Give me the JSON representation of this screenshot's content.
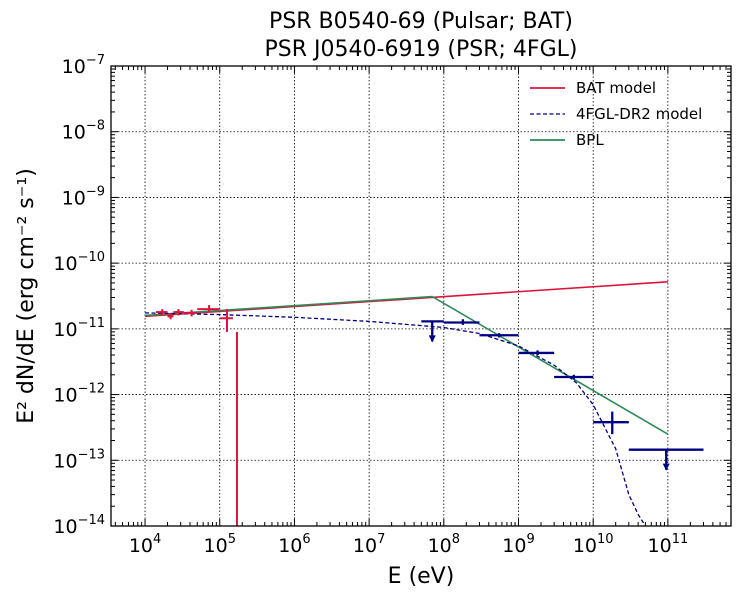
{
  "chart_data": {
    "type": "scatter",
    "title_lines": [
      "PSR B0540-69 (Pulsar; BAT)",
      "PSR J0540-6919 (PSR; 4FGL)"
    ],
    "xlabel": "E (eV)",
    "ylabel": "E² dN/dE (erg cm⁻² s⁻¹)",
    "x_scale": "log",
    "y_scale": "log",
    "xlim": [
      3500,
      700000000000
    ],
    "ylim": [
      1e-14,
      1e-07
    ],
    "x_ticks": [
      {
        "value": 10000,
        "base": "10",
        "exp": "4"
      },
      {
        "value": 100000,
        "base": "10",
        "exp": "5"
      },
      {
        "value": 1000000,
        "base": "10",
        "exp": "6"
      },
      {
        "value": 10000000,
        "base": "10",
        "exp": "7"
      },
      {
        "value": 100000000,
        "base": "10",
        "exp": "8"
      },
      {
        "value": 1000000000,
        "base": "10",
        "exp": "9"
      },
      {
        "value": 10000000000,
        "base": "10",
        "exp": "10"
      },
      {
        "value": 100000000000,
        "base": "10",
        "exp": "11"
      }
    ],
    "y_ticks": [
      {
        "value": 1e-14,
        "base": "10",
        "exp": "−14"
      },
      {
        "value": 1e-13,
        "base": "10",
        "exp": "−13"
      },
      {
        "value": 1e-12,
        "base": "10",
        "exp": "−12"
      },
      {
        "value": 1e-11,
        "base": "10",
        "exp": "−11"
      },
      {
        "value": 1e-10,
        "base": "10",
        "exp": "−10"
      },
      {
        "value": 1e-09,
        "base": "10",
        "exp": "−9"
      },
      {
        "value": 1e-08,
        "base": "10",
        "exp": "−8"
      },
      {
        "value": 1e-07,
        "base": "10",
        "exp": "−7"
      }
    ],
    "grid": true,
    "legend_position": "top-right",
    "legend": [
      {
        "label": "BAT model",
        "color": "#dc143c",
        "style": "solid"
      },
      {
        "label": "4FGL-DR2 model",
        "color": "#000080",
        "style": "dashed"
      },
      {
        "label": "BPL",
        "color": "#2e8b57",
        "style": "solid"
      }
    ],
    "lines": [
      {
        "name": "BAT model",
        "color": "#dc143c",
        "style": "solid",
        "x": [
          10000,
          100000000000
        ],
        "y": [
          1.55e-11,
          5.2e-11
        ]
      },
      {
        "name": "BPL",
        "color": "#2e8b57",
        "style": "solid",
        "x": [
          10000,
          70000000,
          100000000000
        ],
        "y": [
          1.6e-11,
          3.1e-11,
          2.5e-13
        ]
      },
      {
        "name": "4FGL-DR2 model",
        "color": "#000080",
        "style": "dashed",
        "x": [
          10000,
          100000,
          1000000,
          10000000,
          100000000,
          300000000,
          1000000000,
          3000000000,
          6000000000,
          10000000000,
          20000000000,
          30000000000,
          40000000000,
          50000000000
        ],
        "y": [
          1.75e-11,
          1.65e-11,
          1.5e-11,
          1.3e-11,
          1.05e-11,
          8.5e-12,
          5.5e-12,
          2.8e-12,
          1.5e-12,
          7e-13,
          1.5e-13,
          3e-14,
          1.5e-14,
          8e-15
        ]
      }
    ],
    "bat_points": {
      "color": "#dc143c",
      "points": [
        {
          "x": 17000,
          "y": 1.8e-11,
          "xerr": [
            14000,
            20000
          ],
          "yerr": [
            1.6e-11,
            2e-11
          ]
        },
        {
          "x": 22000,
          "y": 1.55e-11,
          "xerr": [
            20000,
            24000
          ],
          "yerr": [
            1.4e-11,
            1.75e-11
          ]
        },
        {
          "x": 28000,
          "y": 1.8e-11,
          "xerr": [
            24000,
            33000
          ],
          "yerr": [
            1.6e-11,
            2e-11
          ]
        },
        {
          "x": 42000,
          "y": 1.75e-11,
          "xerr": [
            33000,
            50000
          ],
          "yerr": [
            1.55e-11,
            1.95e-11
          ]
        },
        {
          "x": 72000,
          "y": 2e-11,
          "xerr": [
            50000,
            100000
          ],
          "yerr": [
            1.8e-11,
            2.3e-11
          ]
        },
        {
          "x": 125000,
          "y": 1.45e-11,
          "xerr": [
            100000,
            150000
          ],
          "yerr": [
            9e-12,
            2e-11
          ]
        },
        {
          "x": 170000,
          "y": 9e-12,
          "xerr": [
            170000,
            170000
          ],
          "yerr": [
            1e-14,
            9e-12
          ]
        }
      ]
    },
    "lat_points": {
      "color": "#000080",
      "points": [
        {
          "x": 70000000,
          "y": 1.3e-11,
          "xerr": [
            50000000,
            100000000
          ],
          "upper_limit": true
        },
        {
          "x": 180000000,
          "y": 1.25e-11,
          "xerr": [
            100000000,
            300000000
          ],
          "yerr": [
            1.15e-11,
            1.4e-11
          ],
          "upper_limit": false
        },
        {
          "x": 550000000,
          "y": 8e-12,
          "xerr": [
            300000000,
            1000000000
          ],
          "yerr": [
            7.4e-12,
            8.6e-12
          ],
          "upper_limit": false
        },
        {
          "x": 1800000000,
          "y": 4.3e-12,
          "xerr": [
            1000000000,
            3000000000
          ],
          "yerr": [
            4e-12,
            4.7e-12
          ],
          "upper_limit": false
        },
        {
          "x": 5500000000,
          "y": 1.85e-12,
          "xerr": [
            3000000000,
            10000000000
          ],
          "yerr": [
            1.7e-12,
            2e-12
          ],
          "upper_limit": false
        },
        {
          "x": 18000000000,
          "y": 3.8e-13,
          "xerr": [
            10000000000,
            30000000000
          ],
          "yerr": [
            2.5e-13,
            5.5e-13
          ],
          "upper_limit": false
        },
        {
          "x": 95000000000,
          "y": 1.45e-13,
          "xerr": [
            30000000000,
            300000000000
          ],
          "upper_limit": true
        }
      ]
    }
  }
}
